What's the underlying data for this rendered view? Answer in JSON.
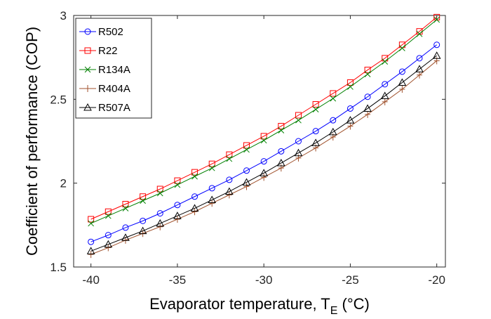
{
  "chart_data": {
    "type": "line",
    "title": "",
    "xlabel": "Evaporator temperature, T",
    "xlabel_sub": "E",
    "xlabel_unit": "(°C)",
    "ylabel": "Coefficient of performance (COP)",
    "xlim": [
      -41,
      -19.5
    ],
    "ylim": [
      1.5,
      3
    ],
    "xticks": [
      -40,
      -35,
      -30,
      -25,
      -20
    ],
    "yticks": [
      1.5,
      2,
      2.5,
      3
    ],
    "xtick_labels": [
      "-40",
      "-35",
      "-30",
      "-25",
      "-20"
    ],
    "ytick_labels": [
      "1.5",
      "2",
      "2.5",
      "3"
    ],
    "grid": false,
    "legend_position": "top-left",
    "x": [
      -40,
      -39,
      -38,
      -37,
      -36,
      -35,
      -34,
      -33,
      -32,
      -31,
      -30,
      -29,
      -28,
      -27,
      -26,
      -25,
      -24,
      -23,
      -22,
      -21,
      -20
    ],
    "series": [
      {
        "name": "R502",
        "color": "#0000ff",
        "marker": "circle",
        "values": [
          1.65,
          1.69,
          1.735,
          1.775,
          1.82,
          1.87,
          1.92,
          1.97,
          2.02,
          2.075,
          2.13,
          2.19,
          2.25,
          2.31,
          2.375,
          2.445,
          2.515,
          2.59,
          2.665,
          2.745,
          2.825
        ]
      },
      {
        "name": "R22",
        "color": "#ff0000",
        "marker": "square",
        "values": [
          1.785,
          1.83,
          1.875,
          1.92,
          1.965,
          2.015,
          2.065,
          2.115,
          2.17,
          2.225,
          2.28,
          2.34,
          2.405,
          2.47,
          2.535,
          2.6,
          2.675,
          2.745,
          2.825,
          2.905,
          2.99
        ]
      },
      {
        "name": "R134A",
        "color": "#008000",
        "marker": "x",
        "values": [
          1.76,
          1.805,
          1.85,
          1.895,
          1.94,
          1.99,
          2.04,
          2.09,
          2.145,
          2.2,
          2.255,
          2.315,
          2.375,
          2.44,
          2.505,
          2.575,
          2.65,
          2.725,
          2.805,
          2.89,
          2.975
        ]
      },
      {
        "name": "R404A",
        "color": "#a0522d",
        "marker": "plus",
        "values": [
          1.575,
          1.615,
          1.66,
          1.7,
          1.74,
          1.785,
          1.83,
          1.88,
          1.93,
          1.98,
          2.035,
          2.09,
          2.15,
          2.21,
          2.275,
          2.34,
          2.41,
          2.485,
          2.56,
          2.645,
          2.73
        ]
      },
      {
        "name": "R507A",
        "color": "#000000",
        "marker": "triangle",
        "values": [
          1.595,
          1.635,
          1.675,
          1.715,
          1.76,
          1.805,
          1.85,
          1.9,
          1.95,
          2.005,
          2.06,
          2.12,
          2.18,
          2.24,
          2.305,
          2.375,
          2.445,
          2.52,
          2.6,
          2.68,
          2.76
        ]
      }
    ]
  }
}
